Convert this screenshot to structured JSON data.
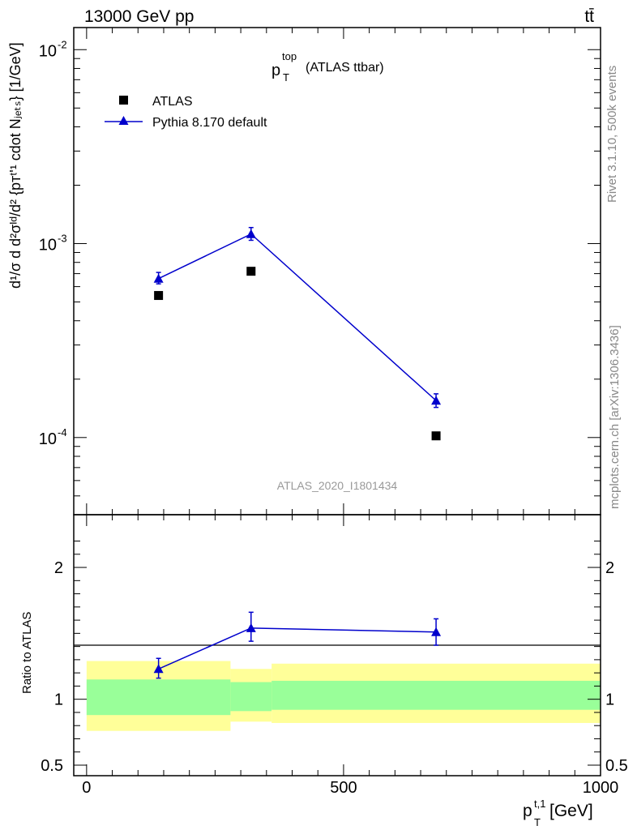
{
  "header": {
    "left": "13000 GeV pp",
    "right": "tt̄"
  },
  "side": {
    "rivet": "Rivet 3.1.10,  500k events",
    "source": "mcplots.cern.ch [arXiv:1306.3436]"
  },
  "chart_data": [
    {
      "type": "scatter",
      "panel": "main",
      "title_main": "p",
      "title_sup": "top",
      "title_sub": "T",
      "title_rest": "(ATLAS ttbar)",
      "ylabel": "d¹/σ d d²σᴵᵈ/d² {pᴛᵗʹ¹ cdot Nⱼₑₜₛ} [1/GeV]",
      "y_scale": "log",
      "ylim": [
        4e-05,
        0.013
      ],
      "xlim": [
        -25,
        1000
      ],
      "y_ticks": [
        {
          "value": 0.01,
          "base": "10",
          "exp": "-2"
        },
        {
          "value": 0.001,
          "base": "10",
          "exp": "-3"
        },
        {
          "value": 0.0001,
          "base": "10",
          "exp": "-4"
        }
      ],
      "watermark": "ATLAS_2020_I1801434",
      "legend_placement": "top-left",
      "series": [
        {
          "name": "ATLAS",
          "marker": "square",
          "color": "#000000",
          "x": [
            140,
            320,
            680
          ],
          "y": [
            0.00054,
            0.00072,
            0.000102
          ]
        },
        {
          "name": "Pythia 8.170 default",
          "marker": "triangle",
          "color": "#0000cc",
          "x": [
            140,
            320,
            680
          ],
          "y": [
            0.00066,
            0.00112,
            0.000155
          ],
          "err_low": [
            0.00062,
            0.00104,
            0.000143
          ],
          "err_high": [
            0.00071,
            0.00121,
            0.000168
          ]
        }
      ]
    },
    {
      "type": "line",
      "panel": "ratio",
      "ylabel": "Ratio to ATLAS",
      "xlabel_main": "p",
      "xlabel_sup": "t,1",
      "xlabel_sub": "T",
      "xlabel_rest": " [GeV]",
      "ylim": [
        0.42,
        2.4
      ],
      "xlim": [
        -25,
        1000
      ],
      "y_ticks": [
        {
          "value": 2,
          "label": "2"
        },
        {
          "value": 1,
          "label": "1"
        },
        {
          "value": 0.5,
          "label": "0.5"
        }
      ],
      "x_ticks": [
        {
          "value": 0,
          "label": "0"
        },
        {
          "value": 500,
          "label": "500"
        },
        {
          "value": 1000,
          "label": "1000"
        }
      ],
      "bands": [
        {
          "x_lo": 0,
          "x_hi": 280,
          "yellow": [
            0.76,
            1.29
          ],
          "green": [
            0.88,
            1.15
          ]
        },
        {
          "x_lo": 280,
          "x_hi": 360,
          "yellow": [
            0.83,
            1.23
          ],
          "green": [
            0.91,
            1.13
          ]
        },
        {
          "x_lo": 360,
          "x_hi": 1000,
          "yellow": [
            0.82,
            1.27
          ],
          "green": [
            0.92,
            1.14
          ]
        }
      ],
      "series": [
        {
          "name": "Pythia 8.170 default",
          "color": "#0000cc",
          "x": [
            140,
            320,
            680
          ],
          "y": [
            1.23,
            1.54,
            1.51
          ],
          "err_low": [
            1.16,
            1.44,
            1.41
          ],
          "err_high": [
            1.31,
            1.66,
            1.61
          ]
        }
      ]
    }
  ]
}
